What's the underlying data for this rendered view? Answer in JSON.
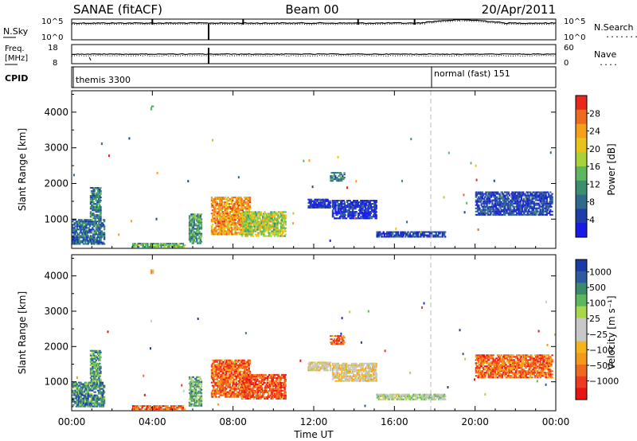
{
  "header": {
    "station": "SANAE (fitACF)",
    "beam": "Beam 00",
    "date": "20/Apr/2011"
  },
  "top_panels": {
    "nsky_label": "N.Sky",
    "nsearch_label": "N.Search",
    "nsearch_legend": "........",
    "freq_label_1": "Freq.",
    "freq_label_2": "[MHz]",
    "nave_label": "Nave",
    "nave_legend": "....",
    "cpid_label": "CPID",
    "noise_tick_top": "10^5",
    "noise_tick_bottom": "10^0",
    "freq_tick_top": "18",
    "freq_tick_bottom": "8",
    "nave_tick_top": "60",
    "nave_tick_bottom": "0",
    "cpid_entries": [
      {
        "name": "themis 3300",
        "start_hour": 0
      },
      {
        "name": "normal (fast) 151",
        "start_hour": 18
      }
    ]
  },
  "chart_data": [
    {
      "type": "heatmap",
      "name": "power",
      "xlabel": "Time UT",
      "ylabel": "Slant Range [km]",
      "xlim_hours": [
        0,
        24
      ],
      "ylim_km": [
        180,
        4600
      ],
      "x_tick_labels": [
        "00:00",
        "04:00",
        "08:00",
        "12:00",
        "16:00",
        "20:00",
        "00:00"
      ],
      "x_tick_hours": [
        0,
        4,
        8,
        12,
        16,
        20,
        24
      ],
      "y_ticks": [
        1000,
        2000,
        3000,
        4000
      ],
      "colorbar_label": "Power [dB]",
      "colorbar_ticks": [
        "28",
        "24",
        "20",
        "16",
        "12",
        "8",
        "4"
      ],
      "colorbar_colors": [
        "#e8281c",
        "#ee6a1e",
        "#f4a01a",
        "#e8c41a",
        "#a8d23a",
        "#5cb85c",
        "#3a8f6e",
        "#2e6a8c",
        "#1e3ea8",
        "#1a1ae6"
      ],
      "clusters": [
        {
          "t0": 0.0,
          "t1": 1.6,
          "r0": 280,
          "r1": 1000,
          "level": 0.25
        },
        {
          "t0": 0.9,
          "t1": 1.4,
          "r0": 1000,
          "r1": 1900,
          "level": 0.3
        },
        {
          "t0": 3.9,
          "t1": 4.0,
          "r0": 4050,
          "r1": 4150,
          "level": 0.3
        },
        {
          "t0": 5.8,
          "t1": 6.4,
          "r0": 300,
          "r1": 1150,
          "level": 0.35
        },
        {
          "t0": 6.9,
          "t1": 8.8,
          "r0": 550,
          "r1": 1600,
          "level": 0.75
        },
        {
          "t0": 8.4,
          "t1": 10.6,
          "r0": 500,
          "r1": 1200,
          "level": 0.55
        },
        {
          "t0": 11.7,
          "t1": 12.8,
          "r0": 1300,
          "r1": 1550,
          "level": 0.1
        },
        {
          "t0": 12.8,
          "t1": 13.5,
          "r0": 2050,
          "r1": 2300,
          "level": 0.3
        },
        {
          "t0": 12.9,
          "t1": 15.1,
          "r0": 1000,
          "r1": 1500,
          "level": 0.1
        },
        {
          "t0": 15.1,
          "t1": 18.5,
          "r0": 480,
          "r1": 660,
          "level": 0.15
        },
        {
          "t0": 20.0,
          "t1": 23.8,
          "r0": 1100,
          "r1": 1750,
          "level": 0.15
        },
        {
          "t0": 3.0,
          "t1": 5.6,
          "r0": 200,
          "r1": 320,
          "level": 0.45
        }
      ]
    },
    {
      "type": "heatmap",
      "name": "velocity",
      "xlabel": "Time UT",
      "ylabel": "Slant Range [km]",
      "xlim_hours": [
        0,
        24
      ],
      "ylim_km": [
        180,
        4600
      ],
      "x_tick_labels": [
        "00:00",
        "04:00",
        "08:00",
        "12:00",
        "16:00",
        "20:00",
        "00:00"
      ],
      "x_tick_hours": [
        0,
        4,
        8,
        12,
        16,
        20,
        24
      ],
      "y_ticks": [
        1000,
        2000,
        3000,
        4000
      ],
      "colorbar_label": "Velocity [m s⁻¹]",
      "colorbar_ticks": [
        "1000",
        "500",
        "100",
        "25",
        "−25",
        "−100",
        "−500",
        "−1000"
      ],
      "colorbar_colors": [
        "#1a3aa8",
        "#2e5aa0",
        "#3a8a6e",
        "#5cb85c",
        "#a8d84a",
        "#c8c8c8",
        "#c8c8c8",
        "#f4b41a",
        "#f49a1a",
        "#ee6a1e",
        "#ee3a1e",
        "#e81414"
      ],
      "clusters": [
        {
          "t0": 0.0,
          "t1": 1.6,
          "r0": 280,
          "r1": 1000,
          "level": 0.2
        },
        {
          "t0": 0.9,
          "t1": 1.4,
          "r0": 1000,
          "r1": 1900,
          "level": 0.25
        },
        {
          "t0": 3.9,
          "t1": 4.0,
          "r0": 4050,
          "r1": 4150,
          "level": 0.7
        },
        {
          "t0": 5.8,
          "t1": 6.4,
          "r0": 300,
          "r1": 1150,
          "level": 0.3
        },
        {
          "t0": 6.9,
          "t1": 8.8,
          "r0": 550,
          "r1": 1600,
          "level": 0.8
        },
        {
          "t0": 8.4,
          "t1": 10.6,
          "r0": 500,
          "r1": 1200,
          "level": 0.85
        },
        {
          "t0": 11.7,
          "t1": 12.8,
          "r0": 1300,
          "r1": 1550,
          "level": 0.55
        },
        {
          "t0": 12.8,
          "t1": 13.5,
          "r0": 2050,
          "r1": 2300,
          "level": 0.85
        },
        {
          "t0": 12.9,
          "t1": 15.1,
          "r0": 1000,
          "r1": 1500,
          "level": 0.55
        },
        {
          "t0": 15.1,
          "t1": 18.5,
          "r0": 480,
          "r1": 660,
          "level": 0.42
        },
        {
          "t0": 20.0,
          "t1": 23.8,
          "r0": 1100,
          "r1": 1750,
          "level": 0.8
        },
        {
          "t0": 3.0,
          "t1": 5.6,
          "r0": 200,
          "r1": 320,
          "level": 0.8
        }
      ]
    }
  ]
}
